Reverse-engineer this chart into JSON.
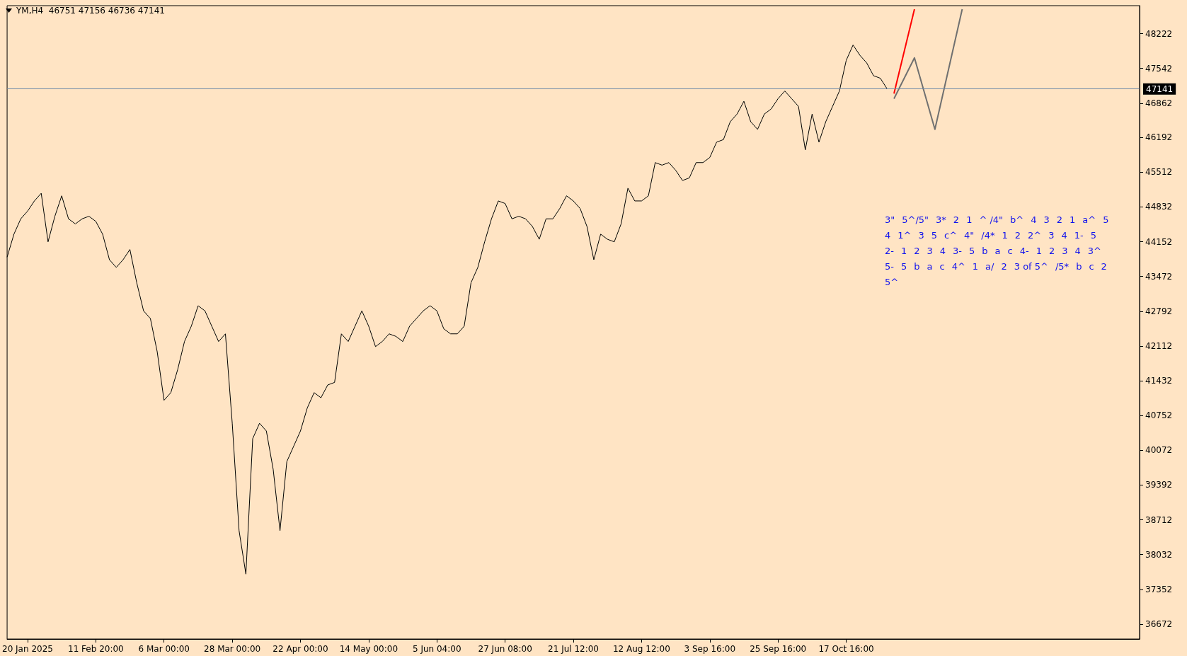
{
  "chart_data": {
    "type": "line",
    "title": "YM,H4  46751 47156 46736 47141",
    "categories": [
      null,
      null,
      null,
      "20 Jan 2025",
      null,
      null,
      null,
      null,
      null,
      null,
      null,
      null,
      null,
      "11 Feb 20:00",
      null,
      null,
      null,
      null,
      null,
      null,
      null,
      null,
      null,
      "6 Mar 00:00",
      null,
      null,
      null,
      null,
      null,
      null,
      null,
      null,
      null,
      "28 Mar 00:00",
      null,
      null,
      null,
      null,
      null,
      null,
      null,
      null,
      null,
      "22 Apr 00:00",
      null,
      null,
      null,
      null,
      null,
      null,
      null,
      null,
      null,
      "14 May 00:00",
      null,
      null,
      null,
      null,
      null,
      null,
      null,
      null,
      null,
      "5 Jun 04:00",
      null,
      null,
      null,
      null,
      null,
      null,
      null,
      null,
      null,
      "27 Jun 08:00",
      null,
      null,
      null,
      null,
      null,
      null,
      null,
      null,
      null,
      "21 Jul 12:00",
      null,
      null,
      null,
      null,
      null,
      null,
      null,
      null,
      null,
      "12 Aug 12:00",
      null,
      null,
      null,
      null,
      null,
      null,
      null,
      null,
      null,
      "3 Sep 16:00",
      null,
      null,
      null,
      null,
      null,
      null,
      null,
      null,
      null,
      "25 Sep 16:00",
      null,
      null,
      null,
      null,
      null,
      null,
      null,
      null,
      null,
      "17 Oct 16:00",
      null,
      null,
      null,
      null,
      null,
      null,
      null,
      null,
      null,
      null,
      null,
      null,
      null,
      null,
      null,
      null,
      null,
      null,
      null,
      null,
      null,
      null,
      null,
      null,
      null,
      null,
      null,
      null,
      null,
      null,
      null,
      null,
      null,
      null,
      null,
      null,
      null,
      null,
      null,
      null,
      null,
      null,
      null
    ],
    "series": [
      {
        "color": "#000000",
        "values": [
          43850,
          44300,
          44600,
          44750,
          44950,
          45100,
          44150,
          44650,
          45050,
          44600,
          44500,
          44600,
          44650,
          44550,
          44300,
          43800,
          43650,
          43800,
          44000,
          43350,
          42800,
          42650,
          42000,
          41050,
          41200,
          41650,
          42200,
          42500,
          42900,
          42800,
          42500,
          42200,
          42350,
          40600,
          38500,
          37650,
          40300,
          40600,
          40450,
          39700,
          38500,
          39850,
          40150,
          40450,
          40900,
          41200,
          41100,
          41350,
          41400,
          42350,
          42200,
          42500,
          42800,
          42500,
          42100,
          42200,
          42350,
          42300,
          42200,
          42500,
          42650,
          42800,
          42900,
          42800,
          42450,
          42350,
          42350,
          42500,
          43350,
          43650,
          44150,
          44600,
          44950,
          44900,
          44600,
          44650,
          44600,
          44450,
          44200,
          44600,
          44600,
          44800,
          45050,
          44950,
          44800,
          44450,
          43800,
          44300,
          44200,
          44150,
          44500,
          45200,
          44950,
          44950,
          45050,
          45700,
          45650,
          45700,
          45550,
          45350,
          45400,
          45700,
          45700,
          45800,
          46100,
          46150,
          46500,
          46650,
          46900,
          46500,
          46350,
          46650,
          46750,
          46950,
          47100,
          46950,
          46800,
          45950,
          46650,
          46100,
          46500,
          46800,
          47100,
          47700,
          48000,
          47800,
          47650,
          47400,
          47350,
          47141,
          null,
          null,
          null,
          null,
          null,
          null,
          null,
          null,
          null,
          null,
          null,
          null,
          null,
          null,
          null,
          null,
          null,
          null,
          null,
          null,
          null,
          null,
          null,
          null,
          null,
          null,
          null,
          null,
          null,
          null,
          null,
          null,
          null,
          null,
          null,
          null,
          null
        ]
      },
      {
        "color": "#ff0000",
        "values": [
          null,
          null,
          null,
          null,
          null,
          null,
          null,
          null,
          null,
          null,
          null,
          null,
          null,
          null,
          null,
          null,
          null,
          null,
          null,
          null,
          null,
          null,
          null,
          null,
          null,
          null,
          null,
          null,
          null,
          null,
          null,
          null,
          null,
          null,
          null,
          null,
          null,
          null,
          null,
          null,
          null,
          null,
          null,
          null,
          null,
          null,
          null,
          null,
          null,
          null,
          null,
          null,
          null,
          null,
          null,
          null,
          null,
          null,
          null,
          null,
          null,
          null,
          null,
          null,
          null,
          null,
          null,
          null,
          null,
          null,
          null,
          null,
          null,
          null,
          null,
          null,
          null,
          null,
          null,
          null,
          null,
          null,
          null,
          null,
          null,
          null,
          null,
          null,
          null,
          null,
          null,
          null,
          null,
          null,
          null,
          null,
          null,
          null,
          null,
          null,
          null,
          null,
          null,
          null,
          null,
          null,
          null,
          null,
          null,
          null,
          null,
          null,
          null,
          null,
          null,
          null,
          null,
          null,
          null,
          null,
          null,
          null,
          null,
          null,
          null,
          null,
          null,
          null,
          null,
          null,
          47050,
          null,
          null,
          48700,
          null,
          null,
          null,
          null,
          null,
          null,
          null,
          null,
          null,
          null,
          null,
          null,
          null,
          null,
          null,
          null,
          null,
          null,
          null,
          null,
          null,
          null,
          null,
          null,
          null,
          null,
          null,
          null,
          null,
          null,
          null,
          null,
          null
        ]
      },
      {
        "color": "#707070",
        "values": [
          null,
          null,
          null,
          null,
          null,
          null,
          null,
          null,
          null,
          null,
          null,
          null,
          null,
          null,
          null,
          null,
          null,
          null,
          null,
          null,
          null,
          null,
          null,
          null,
          null,
          null,
          null,
          null,
          null,
          null,
          null,
          null,
          null,
          null,
          null,
          null,
          null,
          null,
          null,
          null,
          null,
          null,
          null,
          null,
          null,
          null,
          null,
          null,
          null,
          null,
          null,
          null,
          null,
          null,
          null,
          null,
          null,
          null,
          null,
          null,
          null,
          null,
          null,
          null,
          null,
          null,
          null,
          null,
          null,
          null,
          null,
          null,
          null,
          null,
          null,
          null,
          null,
          null,
          null,
          null,
          null,
          null,
          null,
          null,
          null,
          null,
          null,
          null,
          null,
          null,
          null,
          null,
          null,
          null,
          null,
          null,
          null,
          null,
          null,
          null,
          null,
          null,
          null,
          null,
          null,
          null,
          null,
          null,
          null,
          null,
          null,
          null,
          null,
          null,
          null,
          null,
          null,
          null,
          null,
          null,
          null,
          null,
          null,
          null,
          null,
          null,
          null,
          null,
          null,
          null,
          46950,
          null,
          null,
          47750,
          null,
          null,
          46350,
          null,
          null,
          null,
          48700,
          null,
          null,
          null,
          null,
          null,
          null,
          null,
          null,
          null,
          null,
          null,
          null,
          null,
          null,
          null,
          null,
          null,
          null,
          null,
          null,
          null,
          null,
          null,
          null,
          null,
          null
        ]
      }
    ],
    "ylim": [
      36380,
      48770
    ],
    "yticks": [
      36672,
      37352,
      38032,
      38712,
      39392,
      40072,
      40752,
      41432,
      42112,
      42792,
      43472,
      44152,
      44832,
      45512,
      46192,
      46862,
      47542,
      48222
    ],
    "ref_lines": [
      {
        "axis": "y",
        "value": 47141,
        "label": "47141",
        "color": "#6f8aa8"
      }
    ],
    "grid": false,
    "marker": "none",
    "line_style": "solid",
    "annotations": [
      "3\"",
      "5^/5\"",
      "3*",
      "2",
      "1",
      "^ /4\"",
      "b^",
      "4",
      "3",
      "2",
      "1",
      "a^",
      "5",
      "4",
      "1^",
      "3",
      "5",
      "c^",
      "4\"",
      "/4*",
      "1",
      "2",
      "2^",
      "3",
      "4",
      "1-",
      "5",
      "2-",
      "1",
      "2",
      "3",
      "4",
      "3-",
      "5",
      "b",
      "a",
      "c",
      "4-",
      "1",
      "2",
      "3",
      "4",
      "3^",
      "5-",
      "5",
      "b",
      "a",
      "c",
      "4^",
      "1",
      "a/",
      "2",
      "3 of 5^",
      "/5*",
      "b",
      "c",
      "2",
      "5^"
    ]
  }
}
